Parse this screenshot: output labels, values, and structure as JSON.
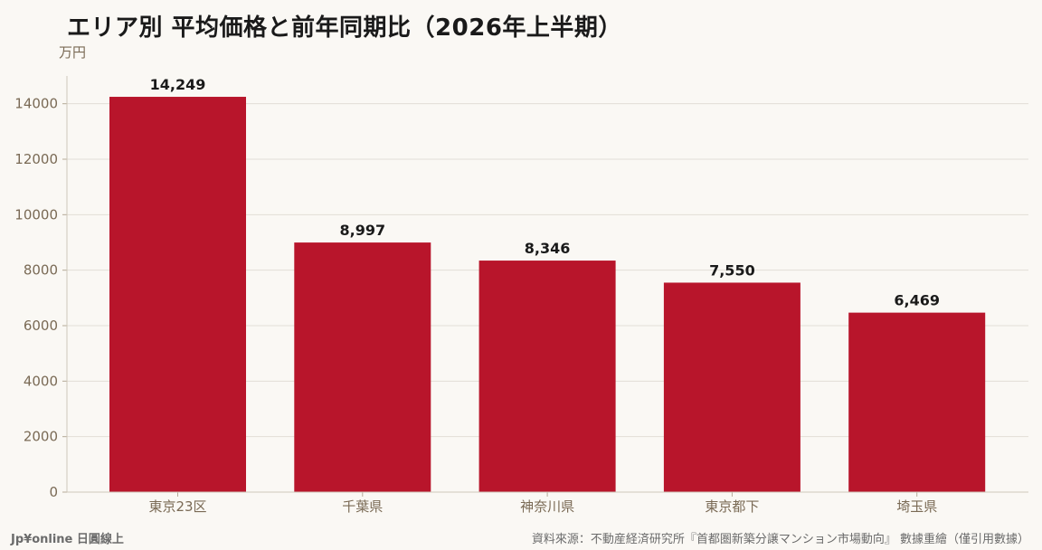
{
  "chart_data": {
    "type": "bar",
    "title": "エリア別 平均価格と前年同期比（2026年上半期）",
    "unit_label": "万円",
    "categories": [
      "東京23区",
      "千葉県",
      "神奈川県",
      "東京都下",
      "埼玉県"
    ],
    "values": [
      14249,
      8997,
      8346,
      7550,
      6469
    ],
    "value_labels": [
      "14,249",
      "8,997",
      "8,346",
      "7,550",
      "6,469"
    ],
    "ylim": [
      0,
      15000
    ],
    "yticks": [
      0,
      2000,
      4000,
      6000,
      8000,
      10000,
      12000,
      14000
    ],
    "grid": true,
    "bar_color": "#B8152B",
    "grid_color": "#E2DED7",
    "axis_text_color": "#7a6a55"
  },
  "footer": {
    "brand": "Jp¥online 日圓線上",
    "source": "資料來源：不動産経済研究所『首都圏新築分譲マンション市場動向』 數據重繪（僅引用數據）"
  }
}
